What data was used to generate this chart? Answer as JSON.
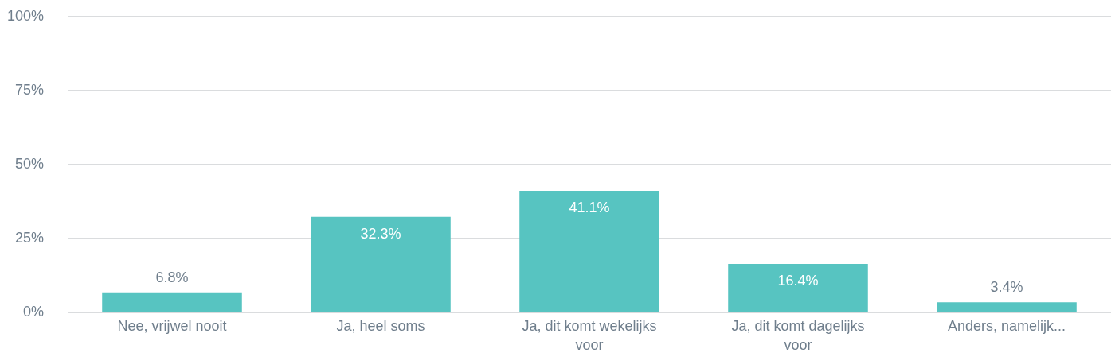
{
  "chart_data": {
    "type": "bar",
    "categories": [
      "Nee, vrijwel nooit",
      "Ja, heel soms",
      "Ja, dit komt wekelijks voor",
      "Ja, dit komt dagelijks voor",
      "Anders, namelijk..."
    ],
    "values": [
      6.8,
      32.3,
      41.1,
      16.4,
      3.4
    ],
    "value_labels": [
      "6.8%",
      "32.3%",
      "41.1%",
      "16.4%",
      "3.4%"
    ],
    "color": "#57c4c1",
    "ylim": [
      0,
      100
    ],
    "yticks": [
      {
        "value": 0,
        "label": "0%"
      },
      {
        "value": 25,
        "label": "25%"
      },
      {
        "value": 50,
        "label": "50%"
      },
      {
        "value": 75,
        "label": "75%"
      },
      {
        "value": 100,
        "label": "100%"
      }
    ],
    "grid": "y",
    "legend": false
  }
}
